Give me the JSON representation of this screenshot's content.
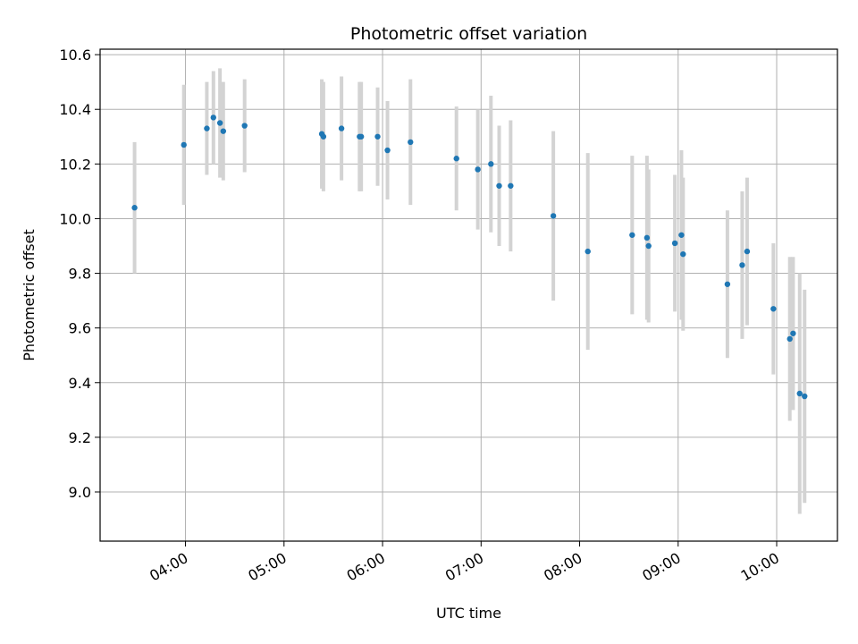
{
  "chart_data": {
    "type": "scatter",
    "title": "Photometric offset variation",
    "xlabel": "UTC time",
    "ylabel": "Photometric offset",
    "xlim": [
      "03:08",
      "10:37"
    ],
    "ylim": [
      8.82,
      10.62
    ],
    "x_ticks": [
      "04:00",
      "05:00",
      "06:00",
      "07:00",
      "08:00",
      "09:00",
      "10:00"
    ],
    "y_ticks": [
      "9.0",
      "9.2",
      "9.4",
      "9.6",
      "9.8",
      "10.0",
      "10.2",
      "10.4",
      "10.6"
    ],
    "grid": true,
    "series": [
      {
        "color": "#1f77b4",
        "errorbar_color": "#d3d3d3",
        "points": [
          {
            "x": "03:29",
            "y": 10.04,
            "err": 0.24
          },
          {
            "x": "03:59",
            "y": 10.27,
            "err": 0.22
          },
          {
            "x": "04:13",
            "y": 10.33,
            "err": 0.17
          },
          {
            "x": "04:17",
            "y": 10.37,
            "err": 0.17
          },
          {
            "x": "04:21",
            "y": 10.35,
            "err": 0.2
          },
          {
            "x": "04:23",
            "y": 10.32,
            "err": 0.18
          },
          {
            "x": "04:36",
            "y": 10.34,
            "err": 0.17
          },
          {
            "x": "05:23",
            "y": 10.31,
            "err": 0.2
          },
          {
            "x": "05:24",
            "y": 10.3,
            "err": 0.2
          },
          {
            "x": "05:35",
            "y": 10.33,
            "err": 0.19
          },
          {
            "x": "05:46",
            "y": 10.3,
            "err": 0.2
          },
          {
            "x": "05:47",
            "y": 10.3,
            "err": 0.2
          },
          {
            "x": "05:57",
            "y": 10.3,
            "err": 0.18
          },
          {
            "x": "06:03",
            "y": 10.25,
            "err": 0.18
          },
          {
            "x": "06:17",
            "y": 10.28,
            "err": 0.23
          },
          {
            "x": "06:45",
            "y": 10.22,
            "err": 0.19
          },
          {
            "x": "06:58",
            "y": 10.18,
            "err": 0.22
          },
          {
            "x": "07:06",
            "y": 10.2,
            "err": 0.25
          },
          {
            "x": "07:11",
            "y": 10.12,
            "err": 0.22
          },
          {
            "x": "07:18",
            "y": 10.12,
            "err": 0.24
          },
          {
            "x": "07:44",
            "y": 10.01,
            "err": 0.31
          },
          {
            "x": "08:05",
            "y": 9.88,
            "err": 0.36
          },
          {
            "x": "08:32",
            "y": 9.94,
            "err": 0.29
          },
          {
            "x": "08:41",
            "y": 9.93,
            "err": 0.3
          },
          {
            "x": "08:42",
            "y": 9.9,
            "err": 0.28
          },
          {
            "x": "08:58",
            "y": 9.91,
            "err": 0.25
          },
          {
            "x": "09:02",
            "y": 9.94,
            "err": 0.31
          },
          {
            "x": "09:03",
            "y": 9.87,
            "err": 0.28
          },
          {
            "x": "09:30",
            "y": 9.76,
            "err": 0.27
          },
          {
            "x": "09:39",
            "y": 9.83,
            "err": 0.27
          },
          {
            "x": "09:42",
            "y": 9.88,
            "err": 0.27
          },
          {
            "x": "09:58",
            "y": 9.67,
            "err": 0.24
          },
          {
            "x": "10:08",
            "y": 9.56,
            "err": 0.3
          },
          {
            "x": "10:10",
            "y": 9.58,
            "err": 0.28
          },
          {
            "x": "10:14",
            "y": 9.36,
            "err": 0.44
          },
          {
            "x": "10:17",
            "y": 9.35,
            "err": 0.39
          }
        ]
      }
    ]
  }
}
